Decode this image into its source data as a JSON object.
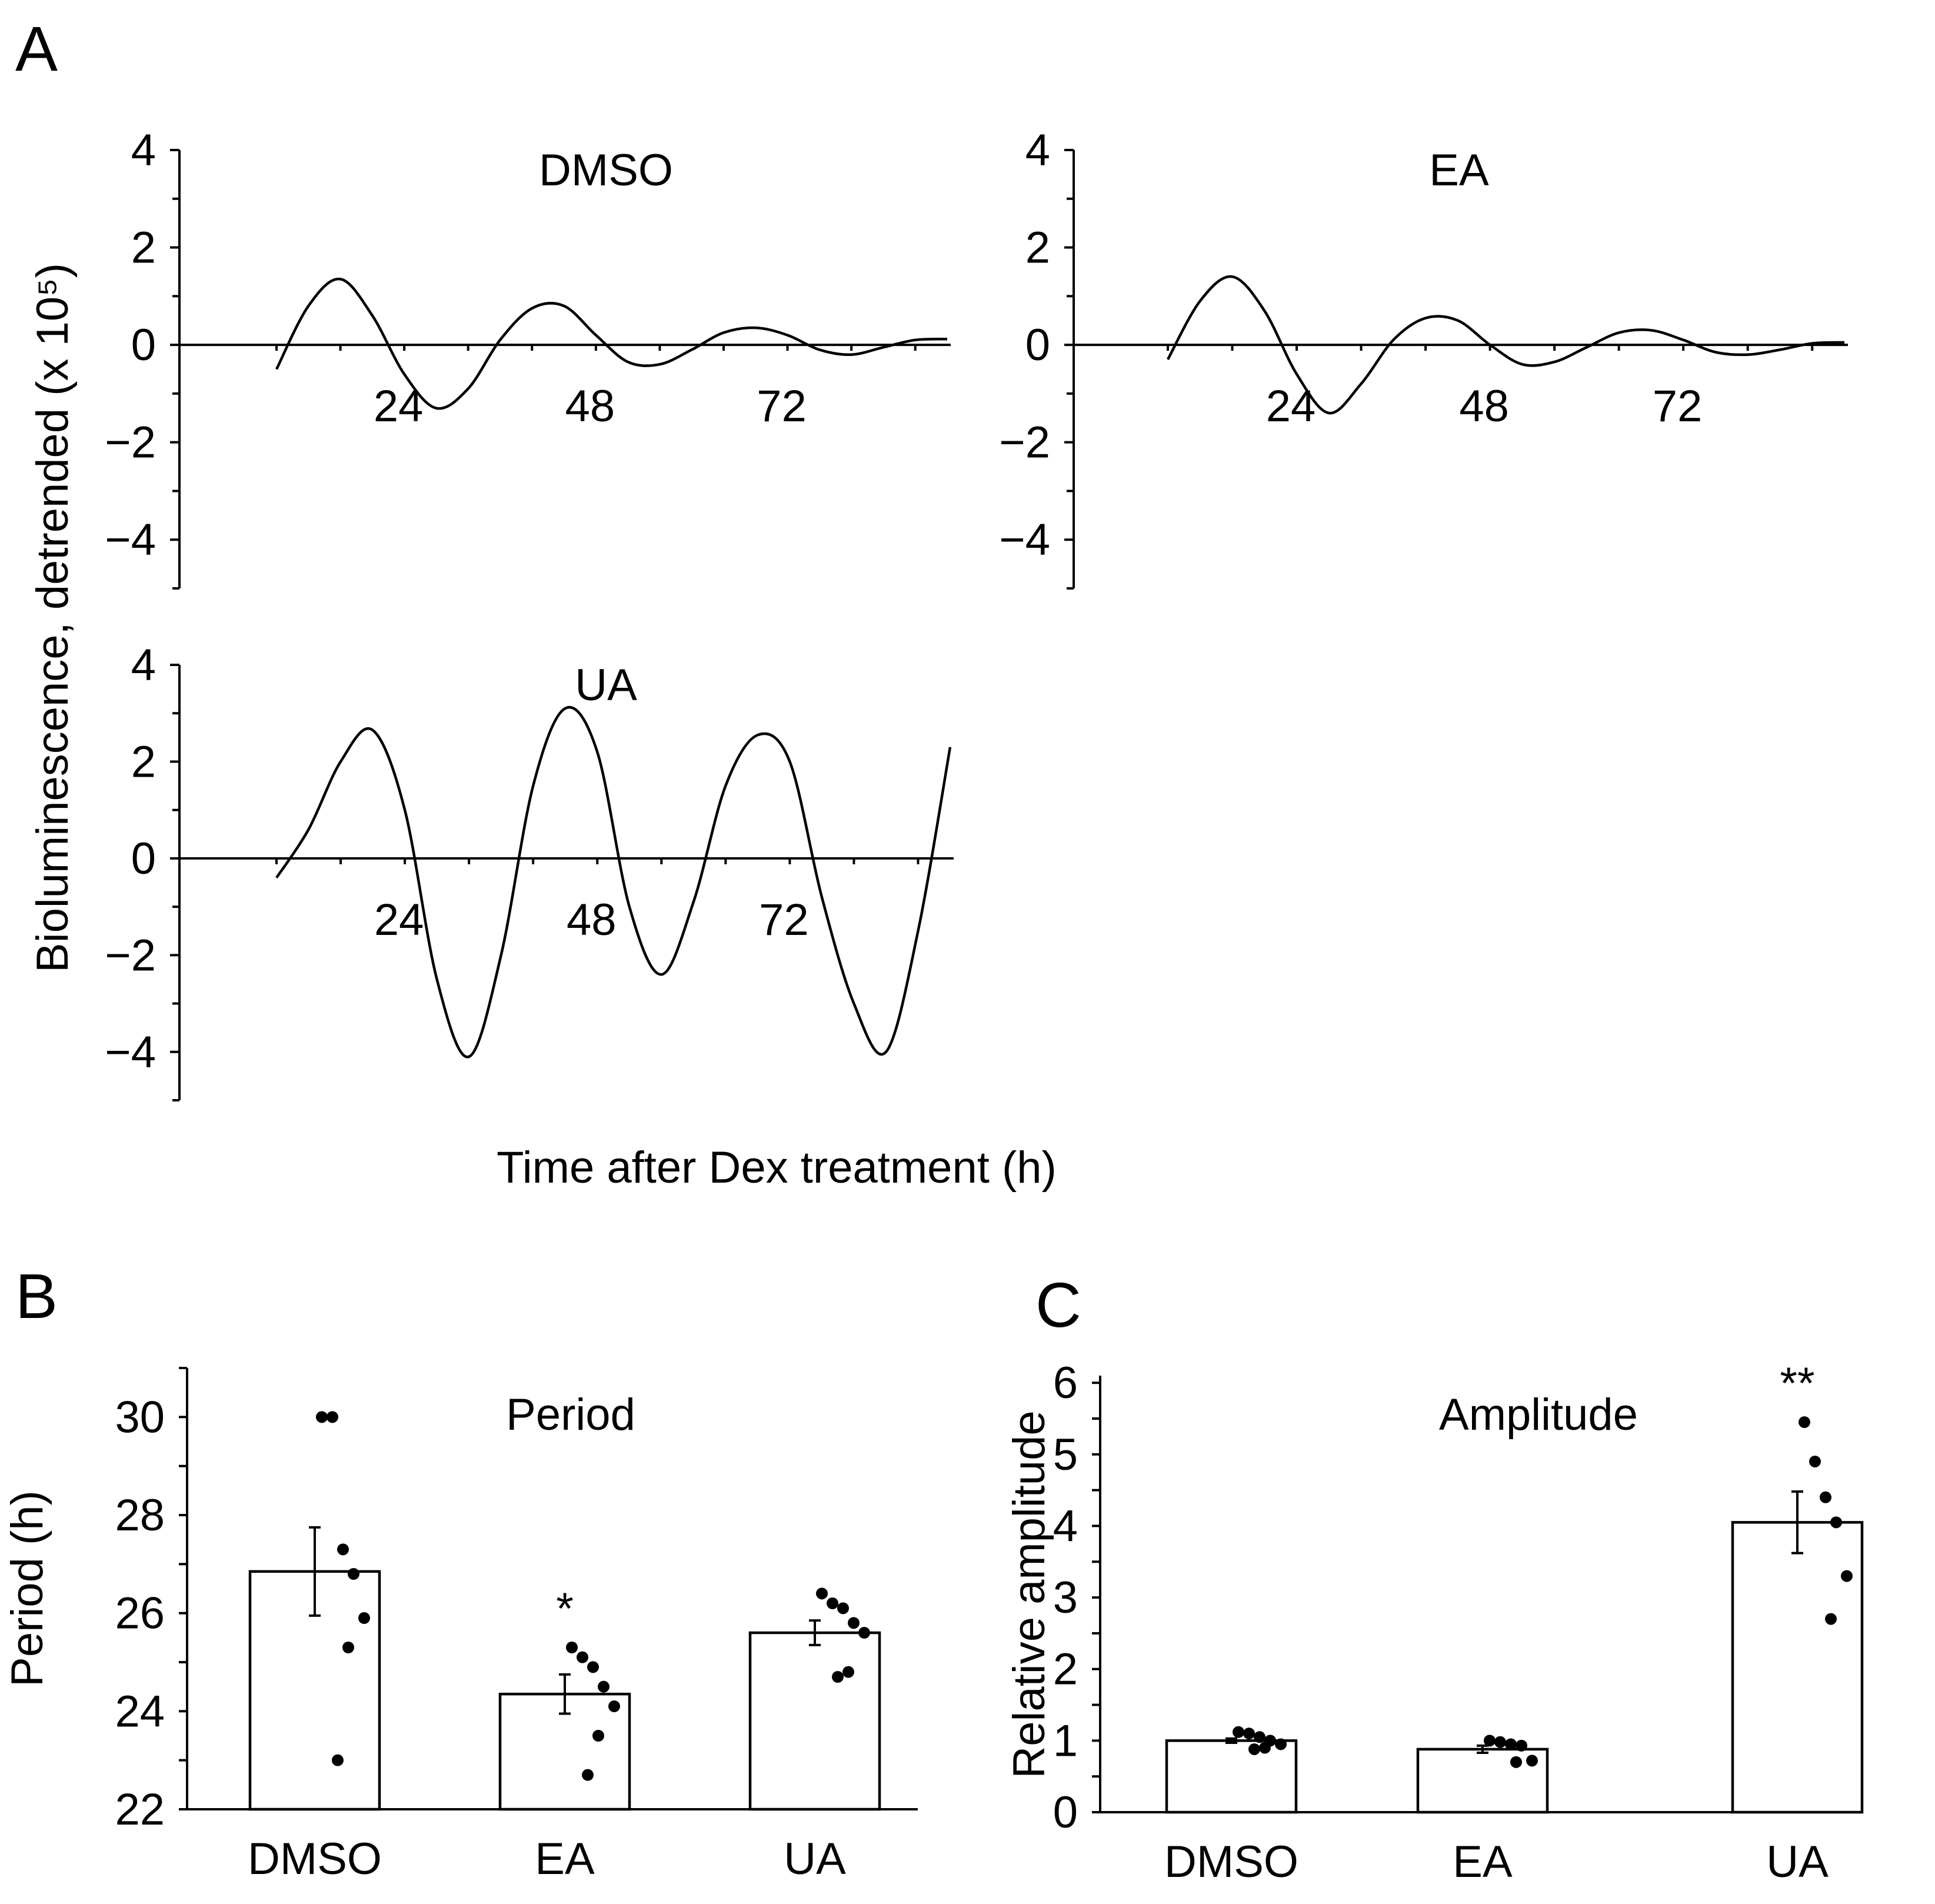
{
  "figure": {
    "panel_labels": [
      "A",
      "B",
      "C"
    ]
  },
  "chart_data": [
    {
      "type": "line",
      "panel": "A",
      "title": "DMSO",
      "xlabel": "Time after Dex treatment (h)",
      "ylabel": "Bioluminescence, detrended (x 10⁵)",
      "xticks": [
        24,
        48,
        72
      ],
      "yticks": [
        4,
        2,
        0,
        -2,
        -4
      ],
      "ylim": [
        -5,
        4
      ],
      "x": [
        8,
        12,
        16,
        20,
        24,
        28,
        32,
        36,
        40,
        44,
        48,
        52,
        56,
        60,
        64,
        68,
        72,
        76,
        80,
        84,
        88,
        92
      ],
      "y": [
        -0.5,
        0.8,
        1.35,
        0.6,
        -0.6,
        -1.3,
        -0.9,
        0.1,
        0.75,
        0.8,
        0.2,
        -0.35,
        -0.4,
        -0.1,
        0.25,
        0.35,
        0.2,
        -0.1,
        -0.2,
        -0.05,
        0.1,
        0.12
      ]
    },
    {
      "type": "line",
      "panel": "A",
      "title": "EA",
      "xticks": [
        24,
        48,
        72
      ],
      "yticks": [
        4,
        2,
        0,
        -2,
        -4
      ],
      "ylim": [
        -5,
        4
      ],
      "x": [
        8,
        12,
        16,
        20,
        24,
        28,
        32,
        36,
        40,
        44,
        48,
        52,
        56,
        60,
        64,
        68,
        72,
        76,
        80,
        84,
        88,
        92
      ],
      "y": [
        -0.3,
        0.9,
        1.4,
        0.7,
        -0.6,
        -1.4,
        -0.8,
        0.1,
        0.55,
        0.5,
        0.0,
        -0.4,
        -0.35,
        -0.05,
        0.25,
        0.3,
        0.1,
        -0.15,
        -0.2,
        -0.1,
        0.03,
        0.05
      ]
    },
    {
      "type": "line",
      "panel": "A",
      "title": "UA",
      "xticks": [
        24,
        48,
        72
      ],
      "yticks": [
        4,
        2,
        0,
        -2,
        -4
      ],
      "ylim": [
        -5,
        4
      ],
      "x": [
        8,
        12,
        16,
        20,
        24,
        28,
        32,
        36,
        40,
        44,
        48,
        52,
        56,
        60,
        64,
        68,
        72,
        76,
        80,
        84,
        88,
        92
      ],
      "y": [
        -0.4,
        0.6,
        2.0,
        2.65,
        1.0,
        -2.5,
        -4.1,
        -2.0,
        1.5,
        3.1,
        2.2,
        -1.0,
        -2.4,
        -0.9,
        1.5,
        2.55,
        2.0,
        -0.8,
        -3.0,
        -4.0,
        -1.5,
        2.3
      ]
    },
    {
      "type": "bar",
      "panel": "B",
      "title": "Period",
      "ylabel": "Period (h)",
      "categories": [
        "DMSO",
        "EA",
        "UA"
      ],
      "values": [
        26.85,
        24.35,
        25.6
      ],
      "errors": [
        0.9,
        0.4,
        0.25
      ],
      "yticks": [
        30,
        28,
        26,
        24,
        22
      ],
      "ylim": [
        22,
        31
      ],
      "points": [
        [
          30.0,
          30.0,
          27.3,
          26.8,
          25.9,
          25.3,
          23.0
        ],
        [
          25.3,
          25.1,
          24.9,
          24.5,
          24.1,
          23.5,
          22.7
        ],
        [
          26.4,
          26.2,
          26.1,
          25.8,
          25.6,
          24.8,
          24.7
        ]
      ],
      "annotations": [
        "",
        "*",
        ""
      ]
    },
    {
      "type": "bar",
      "panel": "C",
      "title": "Amplitude",
      "ylabel": "Relative amplitude",
      "categories": [
        "DMSO",
        "EA",
        "UA"
      ],
      "values": [
        1.0,
        0.88,
        4.05
      ],
      "errors": [
        0.03,
        0.05,
        0.43
      ],
      "yticks": [
        6,
        5,
        4,
        3,
        2,
        1,
        0
      ],
      "ylim": [
        0,
        6.1
      ],
      "points": [
        [
          1.12,
          1.1,
          1.05,
          1.0,
          0.95,
          0.9,
          0.88
        ],
        [
          1.0,
          0.98,
          0.95,
          0.93,
          0.72,
          0.7
        ],
        [
          5.45,
          4.9,
          4.4,
          4.05,
          3.3,
          2.7
        ]
      ],
      "annotations": [
        "",
        "",
        "**"
      ]
    }
  ]
}
